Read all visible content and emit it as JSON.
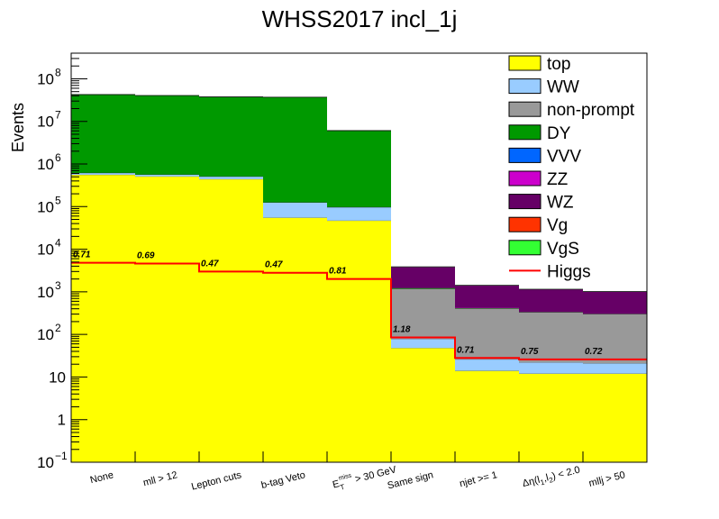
{
  "chart_data": {
    "type": "bar",
    "stacked": true,
    "title": "WHSS2017 incl_1j",
    "ylabel": "Events",
    "xlabel": "",
    "yscale": "log",
    "ylim": [
      0.1,
      400000000
    ],
    "categories": [
      "None",
      "mll > 12",
      "Lepton cuts",
      "b-tag Veto",
      "E_T^miss > 30 GeV",
      "Same sign",
      "njet >= 1",
      "Δη(l1,l2) < 2.0",
      "mllj > 50"
    ],
    "y_ticks": [
      {
        "value": 0.1,
        "base": "10",
        "exp": "−1"
      },
      {
        "value": 1,
        "base": "1",
        "exp": ""
      },
      {
        "value": 10,
        "base": "10",
        "exp": ""
      },
      {
        "value": 100,
        "base": "10",
        "exp": "2"
      },
      {
        "value": 1000,
        "base": "10",
        "exp": "3"
      },
      {
        "value": 10000,
        "base": "10",
        "exp": "4"
      },
      {
        "value": 100000,
        "base": "10",
        "exp": "5"
      },
      {
        "value": 1000000,
        "base": "10",
        "exp": "6"
      },
      {
        "value": 10000000,
        "base": "10",
        "exp": "7"
      },
      {
        "value": 100000000,
        "base": "10",
        "exp": "8"
      }
    ],
    "series": [
      {
        "name": "top",
        "color": "#ffff00",
        "values": [
          560000,
          510000,
          440000,
          55000,
          47000,
          48,
          14,
          12,
          12
        ]
      },
      {
        "name": "WW",
        "color": "#99ccff",
        "values": [
          60000,
          55000,
          70000,
          70000,
          50000,
          30,
          12,
          10,
          9
        ]
      },
      {
        "name": "non-prompt",
        "color": "#999999",
        "values": [
          1000,
          1000,
          900,
          900,
          800,
          1100,
          380,
          310,
          280
        ]
      },
      {
        "name": "DY",
        "color": "#009900",
        "values": [
          42000000,
          40000000,
          37000000,
          37000000,
          6000000,
          50,
          8,
          6,
          5
        ]
      },
      {
        "name": "VVV",
        "color": "#0066ff",
        "values": [
          0,
          0,
          0,
          0,
          0,
          0,
          0,
          0,
          0
        ]
      },
      {
        "name": "ZZ",
        "color": "#cc00cc",
        "values": [
          20,
          20,
          18,
          18,
          16,
          30,
          12,
          10,
          10
        ]
      },
      {
        "name": "WZ",
        "color": "#660066",
        "values": [
          2200,
          2200,
          2000,
          2000,
          1900,
          2600,
          1000,
          800,
          700
        ]
      },
      {
        "name": "Vg",
        "color": "#ff3300",
        "values": [
          0,
          0,
          0,
          0,
          0,
          0,
          0,
          0,
          0
        ]
      },
      {
        "name": "VgS",
        "color": "#33ff33",
        "values": [
          30,
          30,
          28,
          28,
          25,
          40,
          15,
          12,
          12
        ]
      }
    ],
    "line_series": {
      "name": "Higgs",
      "color": "#ff0000",
      "values": [
        4800,
        4600,
        3000,
        2800,
        2000,
        85,
        28,
        26,
        26
      ]
    },
    "annotations": [
      "0.71",
      "0.69",
      "0.47",
      "0.47",
      "0.81",
      "1.18",
      "0.71",
      "0.75",
      "0.72"
    ],
    "legend_position": "top-right",
    "grid": false
  }
}
